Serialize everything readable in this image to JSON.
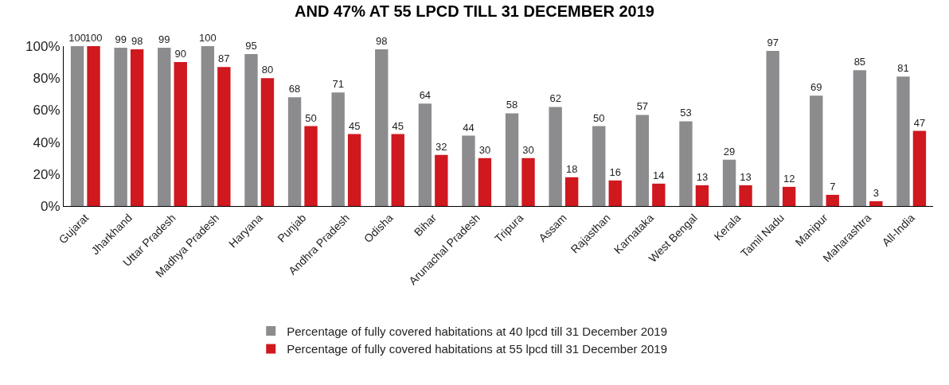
{
  "chart_data": {
    "type": "bar",
    "title": "AND 47% AT 55 LPCD TILL 31 DECEMBER 2019",
    "categories": [
      "Gujarat",
      "Jharkhand",
      "Uttar Pradesh",
      "Madhya Pradesh",
      "Haryana",
      "Punjab",
      "Andhra Pradesh",
      "Odisha",
      "Bihar",
      "Arunachal Pradesh",
      "Tripura",
      "Assam",
      "Rajasthan",
      "Karnataka",
      "West Bengal",
      "Kerala",
      "Tamil Nadu",
      "Manipur",
      "Maharashtra",
      "All-India"
    ],
    "series": [
      {
        "name": "Percentage of fully covered habitations at 40 lpcd till 31 December 2019",
        "color": "#8c8c8e",
        "values": [
          100,
          99,
          99,
          100,
          95,
          68,
          71,
          98,
          64,
          44,
          58,
          62,
          50,
          57,
          53,
          29,
          97,
          69,
          85,
          81
        ]
      },
      {
        "name": "Percentage of fully covered habitations at 55 lpcd till 31 December 2019",
        "color": "#d0181f",
        "values": [
          100,
          98,
          90,
          87,
          80,
          50,
          45,
          45,
          32,
          30,
          30,
          18,
          16,
          14,
          13,
          13,
          12,
          7,
          3,
          47
        ]
      }
    ],
    "ylim": [
      0,
      100
    ],
    "yticks": [
      {
        "value": 0,
        "label": "0%"
      },
      {
        "value": 20,
        "label": "20%"
      },
      {
        "value": 40,
        "label": "40%"
      },
      {
        "value": 60,
        "label": "60%"
      },
      {
        "value": 80,
        "label": "80%"
      },
      {
        "value": 100,
        "label": "100%"
      }
    ],
    "grid": false,
    "legend": "bottom",
    "data_labels": true
  }
}
